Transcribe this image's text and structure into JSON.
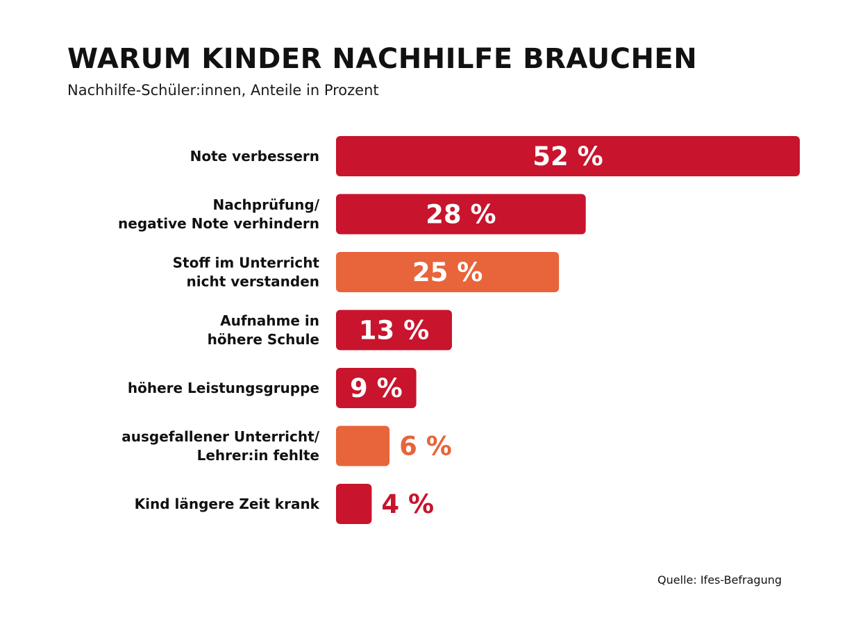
{
  "chart_data": {
    "type": "bar",
    "orientation": "horizontal",
    "title": "WARUM KINDER NACHHILFE BRAUCHEN",
    "subtitle": "Nachhilfe-Schüler:innen, Anteile in Prozent",
    "categories": [
      [
        "Note verbessern"
      ],
      [
        "Nachprüfung/",
        "negative Note verhindern"
      ],
      [
        "Stoff im Unterricht",
        "nicht verstanden"
      ],
      [
        "Aufnahme in",
        "höhere Schule"
      ],
      [
        "höhere Leistungsgruppe"
      ],
      [
        "ausgefallener Unterricht/",
        "Lehrer:in fehlte"
      ],
      [
        "Kind längere Zeit krank"
      ]
    ],
    "values": [
      52,
      28,
      25,
      13,
      9,
      6,
      4
    ],
    "value_labels": [
      "52 %",
      "28 %",
      "25 %",
      "13 %",
      "9 %",
      "6 %",
      "4 %"
    ],
    "bar_colors": [
      "#c8142d",
      "#c8142d",
      "#e8643a",
      "#c8142d",
      "#c8142d",
      "#e8643a",
      "#c8142d"
    ],
    "xlim": [
      0,
      52
    ],
    "grid": false,
    "legend": "none",
    "source": "Quelle: Ifes-Befragung"
  }
}
